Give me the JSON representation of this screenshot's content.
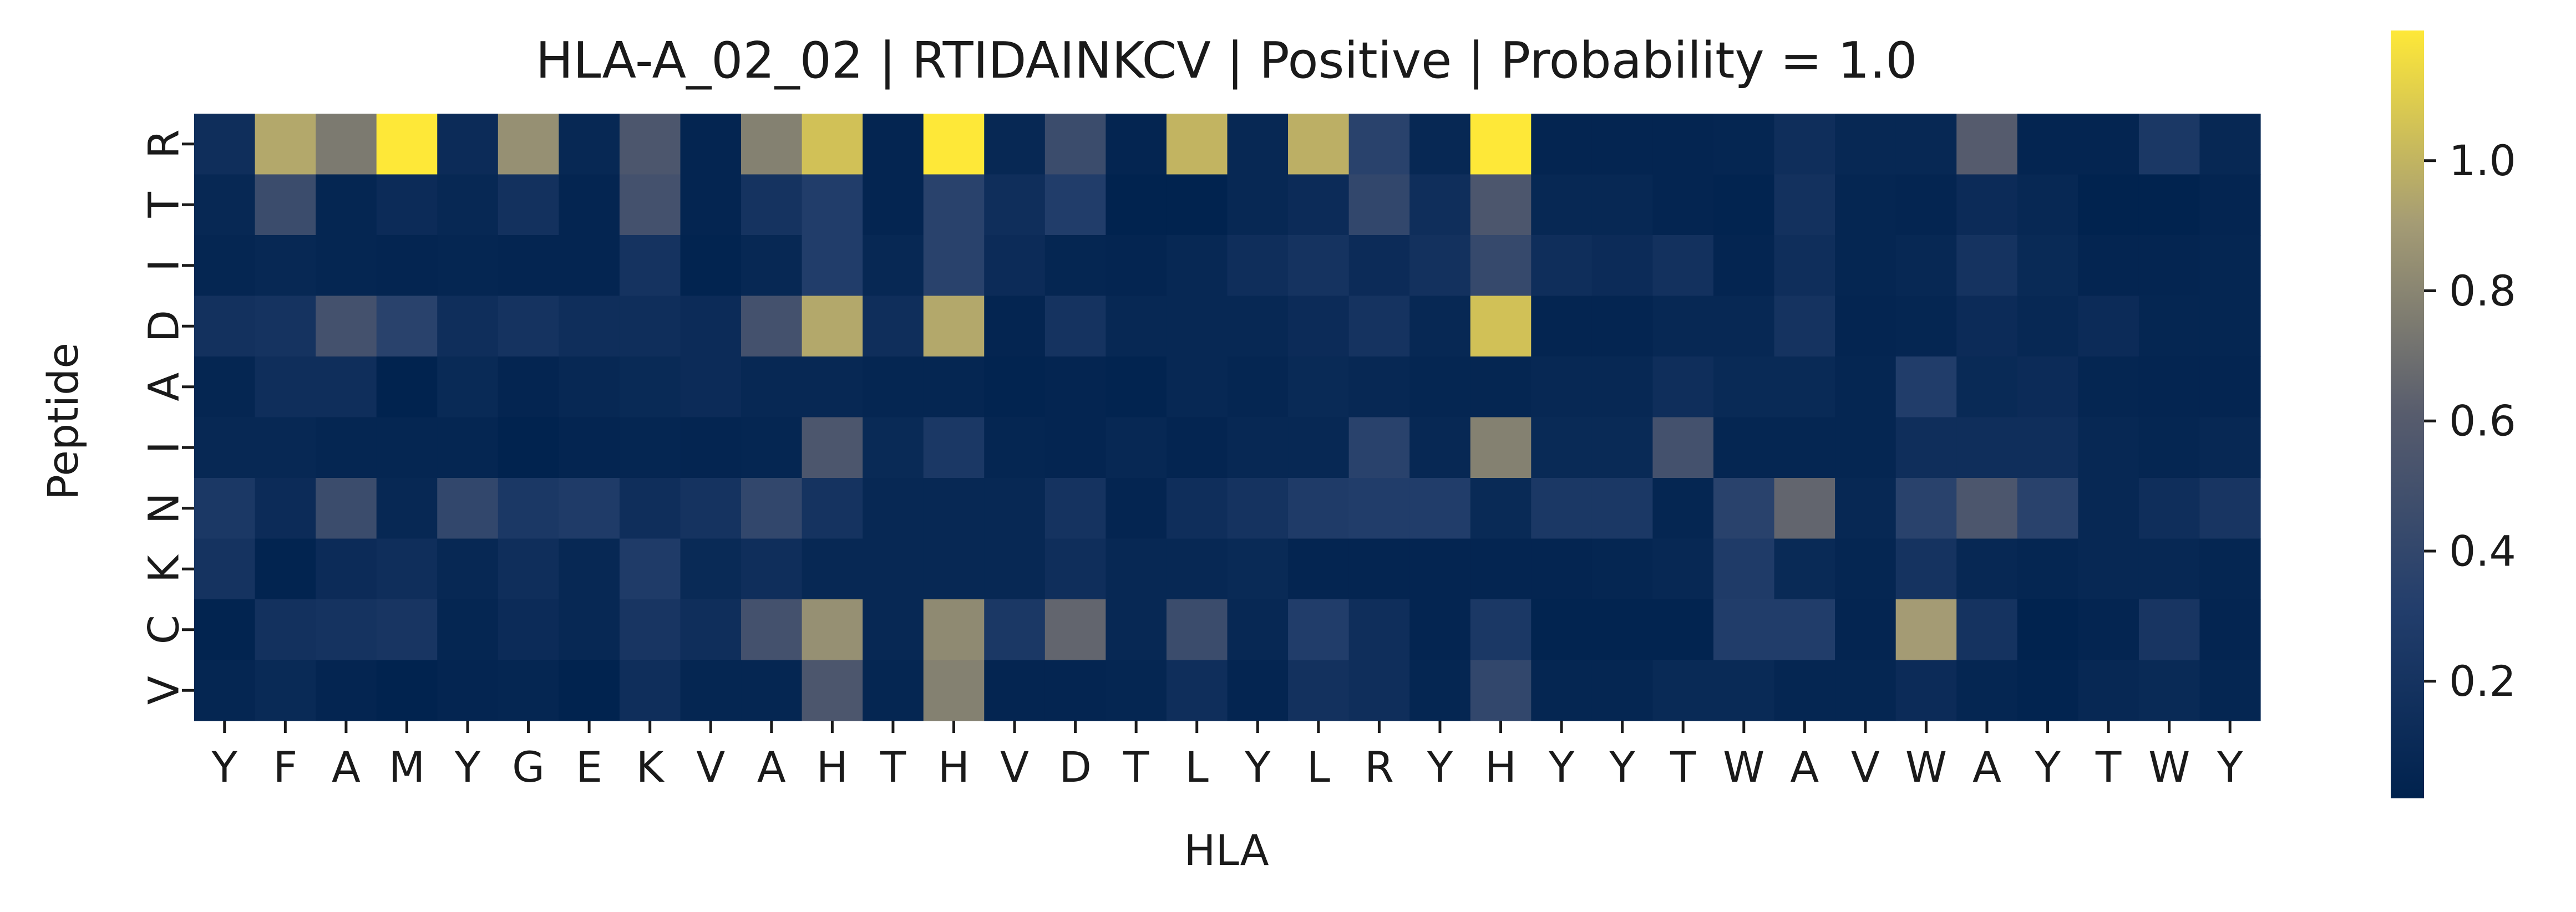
{
  "chart_data": {
    "type": "heatmap",
    "title": "HLA-A_02_02 | RTIDAINKCV | Positive | Probability = 1.0",
    "xlabel": "HLA",
    "ylabel": "Peptide",
    "x_categories": [
      "Y",
      "F",
      "A",
      "M",
      "Y",
      "G",
      "E",
      "K",
      "V",
      "A",
      "H",
      "T",
      "H",
      "V",
      "D",
      "T",
      "L",
      "Y",
      "L",
      "R",
      "Y",
      "H",
      "Y",
      "Y",
      "T",
      "W",
      "A",
      "V",
      "W",
      "A",
      "Y",
      "T",
      "W",
      "Y"
    ],
    "y_categories": [
      "R",
      "T",
      "I",
      "D",
      "A",
      "I",
      "N",
      "K",
      "C",
      "V"
    ],
    "colormap": "cividis",
    "colorbar_range": [
      0.02,
      1.2
    ],
    "colorbar_ticks": [
      "0.2",
      "0.4",
      "0.6",
      "0.8",
      "1.0"
    ],
    "colorbar_tick_values": [
      0.2,
      0.4,
      0.6,
      0.8,
      1.0
    ],
    "values": [
      [
        0.15,
        0.95,
        0.75,
        1.2,
        0.12,
        0.85,
        0.08,
        0.55,
        0.05,
        0.78,
        1.05,
        0.05,
        1.2,
        0.08,
        0.45,
        0.05,
        1.0,
        0.08,
        0.98,
        0.35,
        0.08,
        1.2,
        0.05,
        0.05,
        0.05,
        0.06,
        0.15,
        0.08,
        0.08,
        0.6,
        0.05,
        0.05,
        0.25,
        0.08
      ],
      [
        0.08,
        0.45,
        0.06,
        0.12,
        0.08,
        0.18,
        0.05,
        0.5,
        0.05,
        0.2,
        0.3,
        0.05,
        0.35,
        0.15,
        0.3,
        0.03,
        0.03,
        0.08,
        0.12,
        0.4,
        0.15,
        0.55,
        0.08,
        0.08,
        0.05,
        0.04,
        0.18,
        0.06,
        0.05,
        0.12,
        0.08,
        0.03,
        0.03,
        0.05
      ],
      [
        0.06,
        0.08,
        0.06,
        0.05,
        0.06,
        0.05,
        0.05,
        0.2,
        0.04,
        0.08,
        0.3,
        0.08,
        0.35,
        0.12,
        0.06,
        0.05,
        0.08,
        0.15,
        0.2,
        0.12,
        0.18,
        0.42,
        0.15,
        0.12,
        0.18,
        0.05,
        0.15,
        0.06,
        0.08,
        0.2,
        0.1,
        0.05,
        0.05,
        0.06
      ],
      [
        0.18,
        0.2,
        0.5,
        0.35,
        0.15,
        0.2,
        0.15,
        0.15,
        0.12,
        0.5,
        0.95,
        0.15,
        0.95,
        0.05,
        0.2,
        0.08,
        0.08,
        0.08,
        0.12,
        0.2,
        0.08,
        1.05,
        0.05,
        0.05,
        0.08,
        0.08,
        0.2,
        0.05,
        0.06,
        0.12,
        0.08,
        0.12,
        0.06,
        0.06
      ],
      [
        0.06,
        0.15,
        0.15,
        0.03,
        0.1,
        0.05,
        0.08,
        0.1,
        0.12,
        0.08,
        0.08,
        0.06,
        0.06,
        0.04,
        0.05,
        0.04,
        0.08,
        0.06,
        0.1,
        0.08,
        0.06,
        0.06,
        0.08,
        0.08,
        0.15,
        0.1,
        0.1,
        0.06,
        0.3,
        0.1,
        0.12,
        0.06,
        0.05,
        0.05
      ],
      [
        0.08,
        0.08,
        0.06,
        0.06,
        0.06,
        0.03,
        0.05,
        0.06,
        0.05,
        0.06,
        0.55,
        0.1,
        0.25,
        0.06,
        0.05,
        0.08,
        0.05,
        0.08,
        0.08,
        0.35,
        0.08,
        0.78,
        0.1,
        0.1,
        0.5,
        0.06,
        0.06,
        0.06,
        0.15,
        0.15,
        0.15,
        0.08,
        0.06,
        0.08
      ],
      [
        0.25,
        0.12,
        0.45,
        0.08,
        0.4,
        0.25,
        0.28,
        0.15,
        0.2,
        0.4,
        0.2,
        0.08,
        0.08,
        0.08,
        0.2,
        0.05,
        0.15,
        0.2,
        0.28,
        0.3,
        0.3,
        0.1,
        0.25,
        0.25,
        0.06,
        0.35,
        0.65,
        0.08,
        0.35,
        0.55,
        0.35,
        0.08,
        0.15,
        0.22
      ],
      [
        0.2,
        0.04,
        0.12,
        0.15,
        0.08,
        0.15,
        0.08,
        0.28,
        0.1,
        0.15,
        0.08,
        0.08,
        0.08,
        0.08,
        0.15,
        0.08,
        0.08,
        0.1,
        0.05,
        0.05,
        0.05,
        0.05,
        0.05,
        0.06,
        0.08,
        0.28,
        0.1,
        0.06,
        0.2,
        0.08,
        0.06,
        0.08,
        0.08,
        0.06
      ],
      [
        0.04,
        0.18,
        0.2,
        0.22,
        0.06,
        0.12,
        0.08,
        0.22,
        0.15,
        0.5,
        0.85,
        0.08,
        0.82,
        0.25,
        0.65,
        0.08,
        0.45,
        0.08,
        0.3,
        0.15,
        0.05,
        0.25,
        0.04,
        0.04,
        0.04,
        0.3,
        0.3,
        0.05,
        0.9,
        0.2,
        0.03,
        0.05,
        0.22,
        0.05
      ],
      [
        0.06,
        0.1,
        0.05,
        0.03,
        0.05,
        0.06,
        0.03,
        0.15,
        0.06,
        0.06,
        0.55,
        0.06,
        0.78,
        0.05,
        0.05,
        0.06,
        0.15,
        0.05,
        0.18,
        0.15,
        0.06,
        0.4,
        0.06,
        0.06,
        0.1,
        0.1,
        0.06,
        0.06,
        0.12,
        0.06,
        0.04,
        0.08,
        0.1,
        0.06
      ]
    ]
  }
}
